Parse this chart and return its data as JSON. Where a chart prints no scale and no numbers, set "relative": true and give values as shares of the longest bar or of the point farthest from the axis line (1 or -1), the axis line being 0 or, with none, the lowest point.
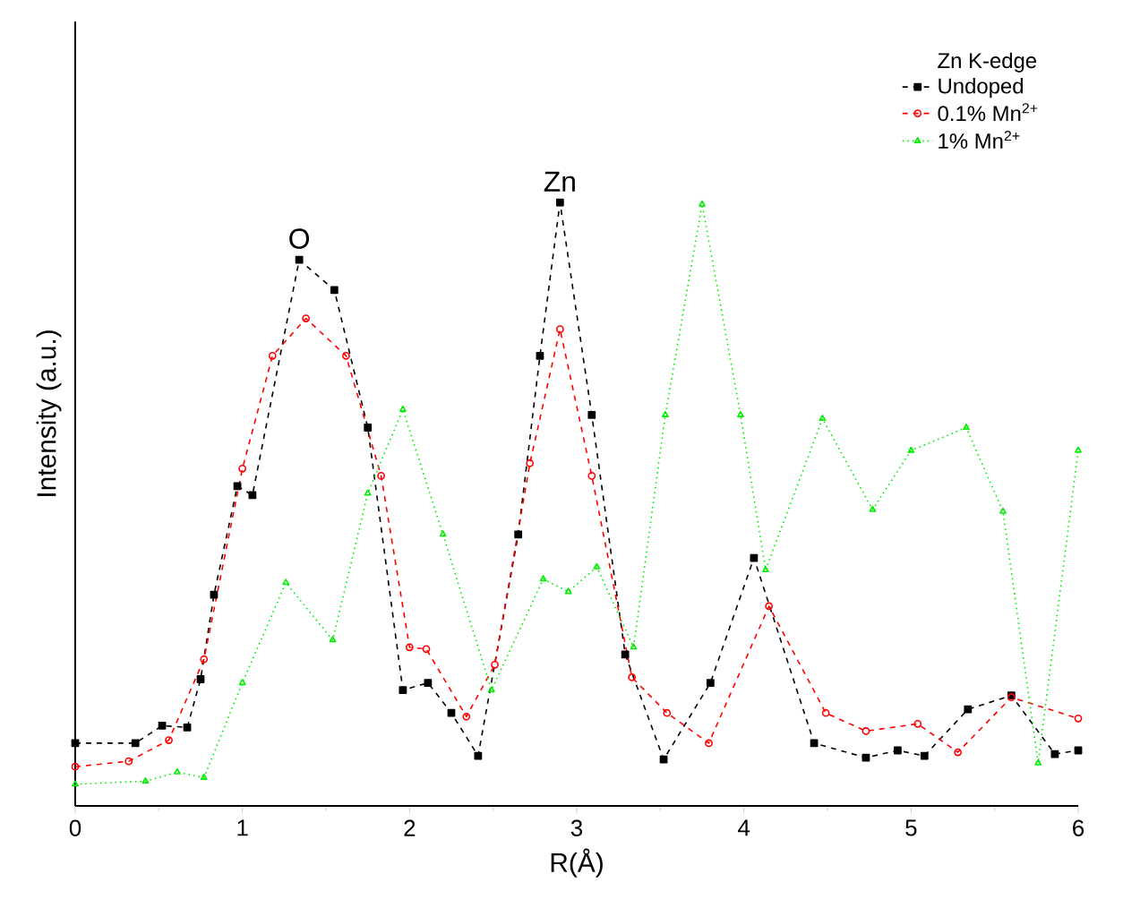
{
  "chart_data": {
    "type": "line",
    "relative": true,
    "xlabel": "R(Å)",
    "ylabel": "Intensity (a.u.)",
    "legend_title": "Zn K-edge",
    "legend": "top right",
    "xlim": [
      0,
      6
    ],
    "xticks": [
      0,
      1,
      2,
      3,
      4,
      5,
      6
    ],
    "annotations": [
      {
        "text": "O",
        "x": 1.34,
        "y": 0.905
      },
      {
        "text": "Zn",
        "x": 2.9,
        "y": 1.0
      }
    ],
    "series": [
      {
        "name": "Undoped",
        "color": "#000000",
        "marker": "square",
        "line_style": "dashed",
        "x": [
          0,
          0.36,
          0.52,
          0.67,
          0.75,
          0.83,
          0.97,
          1.06,
          1.34,
          1.55,
          1.75,
          1.96,
          2.11,
          2.25,
          2.41,
          2.65,
          2.78,
          2.9,
          3.09,
          3.29,
          3.52,
          3.8,
          4.06,
          4.42,
          4.73,
          4.92,
          5.08,
          5.34,
          5.6,
          5.86,
          6
        ],
        "values": [
          0.104,
          0.104,
          0.133,
          0.13,
          0.21,
          0.35,
          0.53,
          0.515,
          0.905,
          0.855,
          0.627,
          0.192,
          0.204,
          0.154,
          0.083,
          0.45,
          0.746,
          1.0,
          0.648,
          0.251,
          0.077,
          0.204,
          0.411,
          0.104,
          0.08,
          0.092,
          0.083,
          0.16,
          0.183,
          0.086,
          0.092
        ]
      },
      {
        "name": "0.1% Mn$^{2+}$",
        "color": "#ff0000",
        "marker": "circle",
        "line_style": "dashed",
        "x": [
          0,
          0.32,
          0.56,
          0.77,
          1.0,
          1.18,
          1.38,
          1.62,
          1.83,
          2.0,
          2.1,
          2.34,
          2.51,
          2.72,
          2.9,
          3.09,
          3.33,
          3.54,
          3.79,
          4.15,
          4.49,
          4.73,
          5.04,
          5.28,
          5.6,
          6
        ],
        "values": [
          0.065,
          0.074,
          0.109,
          0.243,
          0.559,
          0.746,
          0.808,
          0.746,
          0.547,
          0.263,
          0.26,
          0.148,
          0.234,
          0.568,
          0.79,
          0.547,
          0.213,
          0.154,
          0.104,
          0.331,
          0.154,
          0.124,
          0.136,
          0.089,
          0.18,
          0.145
        ]
      },
      {
        "name": "1% Mn$^{2+}$",
        "color": "#00ee00",
        "marker": "triangle",
        "line_style": "dotted",
        "x": [
          0,
          0.42,
          0.61,
          0.77,
          1.0,
          1.26,
          1.54,
          1.75,
          1.96,
          2.2,
          2.49,
          2.8,
          2.95,
          3.12,
          3.34,
          3.53,
          3.75,
          3.98,
          4.13,
          4.47,
          4.77,
          5.0,
          5.33,
          5.55,
          5.76,
          6
        ],
        "values": [
          0.036,
          0.041,
          0.056,
          0.047,
          0.204,
          0.37,
          0.275,
          0.518,
          0.657,
          0.45,
          0.192,
          0.376,
          0.355,
          0.396,
          0.263,
          0.648,
          0.997,
          0.648,
          0.391,
          0.642,
          0.491,
          0.589,
          0.627,
          0.488,
          0.071,
          0.589
        ]
      }
    ]
  }
}
